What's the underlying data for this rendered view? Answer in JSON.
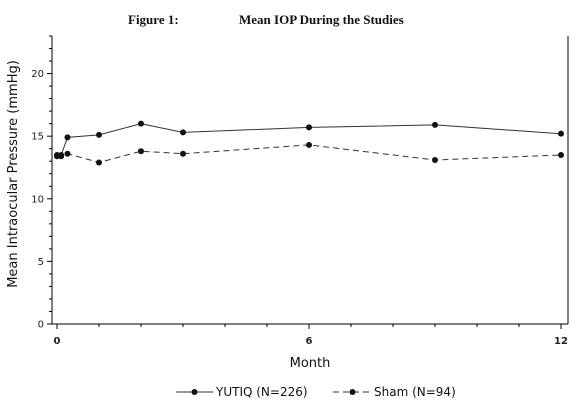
{
  "chart_data": {
    "type": "line",
    "figure_label": "Figure 1:",
    "title": "Mean IOP During the Studies",
    "xlabel": "Month",
    "ylabel": "Mean Intraocular Pressure (mmHg)",
    "xlim": [
      0,
      12
    ],
    "ylim": [
      0,
      23
    ],
    "x_ticks": [
      0,
      6,
      12
    ],
    "y_ticks": [
      0,
      5,
      10,
      15,
      20
    ],
    "grid": false,
    "legend_position": "bottom",
    "series": [
      {
        "name": "YUTIQ (N=226)",
        "style": "solid",
        "color": "#333333",
        "x": [
          0,
          0.1,
          0.25,
          1,
          2,
          3,
          6,
          9,
          12
        ],
        "y": [
          13.4,
          13.5,
          14.9,
          15.1,
          16.0,
          15.3,
          15.7,
          15.9,
          15.2
        ]
      },
      {
        "name": "Sham (N=94)",
        "style": "dashed",
        "color": "#333333",
        "x": [
          0,
          0.1,
          0.25,
          1,
          2,
          3,
          6,
          9,
          12
        ],
        "y": [
          13.5,
          13.4,
          13.6,
          12.9,
          13.8,
          13.6,
          14.3,
          13.1,
          13.5
        ]
      }
    ]
  }
}
